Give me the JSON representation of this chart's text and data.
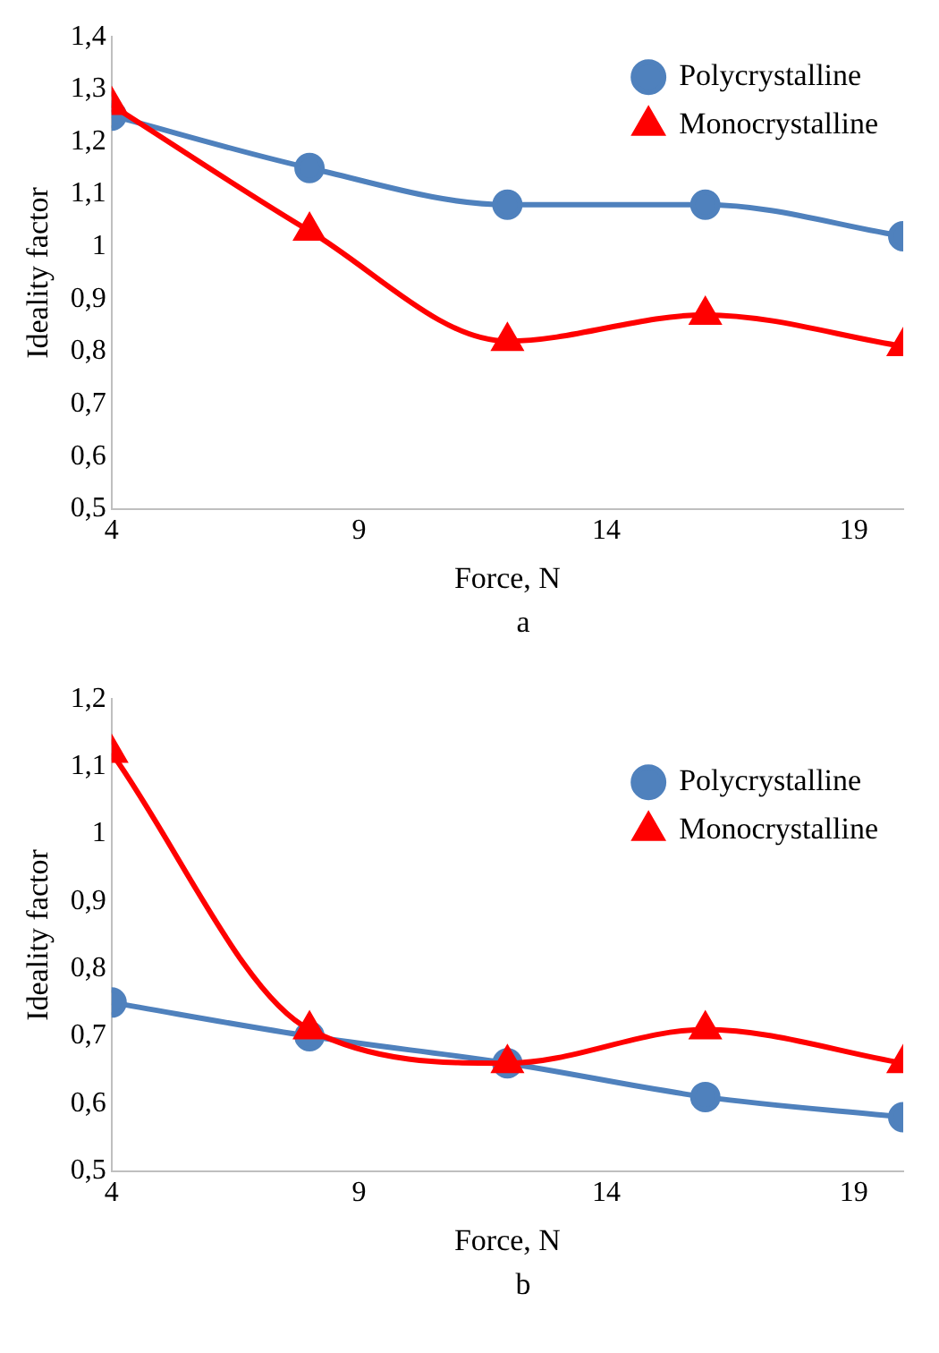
{
  "chart_data": [
    {
      "type": "line",
      "xlabel": "Force, N",
      "ylabel": "Ideality factor",
      "x": [
        4,
        8,
        12,
        16,
        20
      ],
      "xlim": [
        4,
        20
      ],
      "xticks": [
        4,
        9,
        14,
        19
      ],
      "ylim": [
        0.5,
        1.4
      ],
      "yticks": [
        {
          "value": 0.5,
          "label": "0,5"
        },
        {
          "value": 0.6,
          "label": "0,6"
        },
        {
          "value": 0.7,
          "label": "0,7"
        },
        {
          "value": 0.8,
          "label": "0,8"
        },
        {
          "value": 0.9,
          "label": "0,9"
        },
        1,
        {
          "value": 1.1,
          "label": "1,1"
        },
        {
          "value": 1.2,
          "label": "1,2"
        },
        {
          "value": 1.3,
          "label": "1,3"
        },
        {
          "value": 1.4,
          "label": "1,4"
        }
      ],
      "grid": false,
      "legend": "top right",
      "annotations": [
        "a"
      ],
      "series": [
        {
          "name": "Polycrystalline",
          "color": "#4f81bd",
          "marker": "circle",
          "values": [
            1.25,
            1.15,
            1.08,
            1.08,
            1.02
          ]
        },
        {
          "name": "Monocrystalline",
          "color": "#ff0000",
          "marker": "triangle",
          "values": [
            1.27,
            1.03,
            0.82,
            0.87,
            0.81
          ]
        }
      ]
    },
    {
      "type": "line",
      "xlabel": "Force, N",
      "ylabel": "Ideality factor",
      "x": [
        4,
        8,
        12,
        16,
        20
      ],
      "xlim": [
        4,
        20
      ],
      "xticks": [
        4,
        9,
        14,
        19
      ],
      "ylim": [
        0.5,
        1.2
      ],
      "yticks": [
        {
          "value": 0.5,
          "label": "0,5"
        },
        {
          "value": 0.6,
          "label": "0,6"
        },
        {
          "value": 0.7,
          "label": "0,7"
        },
        {
          "value": 0.8,
          "label": "0,8"
        },
        {
          "value": 0.9,
          "label": "0,9"
        },
        1,
        {
          "value": 1.1,
          "label": "1,1"
        },
        {
          "value": 1.2,
          "label": "1,2"
        }
      ],
      "grid": false,
      "legend": "top right",
      "annotations": [
        "b"
      ],
      "series": [
        {
          "name": "Polycrystalline",
          "color": "#4f81bd",
          "marker": "circle",
          "values": [
            0.75,
            0.7,
            0.66,
            0.61,
            0.58
          ]
        },
        {
          "name": "Monocrystalline",
          "color": "#ff0000",
          "marker": "triangle",
          "values": [
            1.12,
            0.71,
            0.66,
            0.71,
            0.66
          ]
        }
      ]
    }
  ]
}
